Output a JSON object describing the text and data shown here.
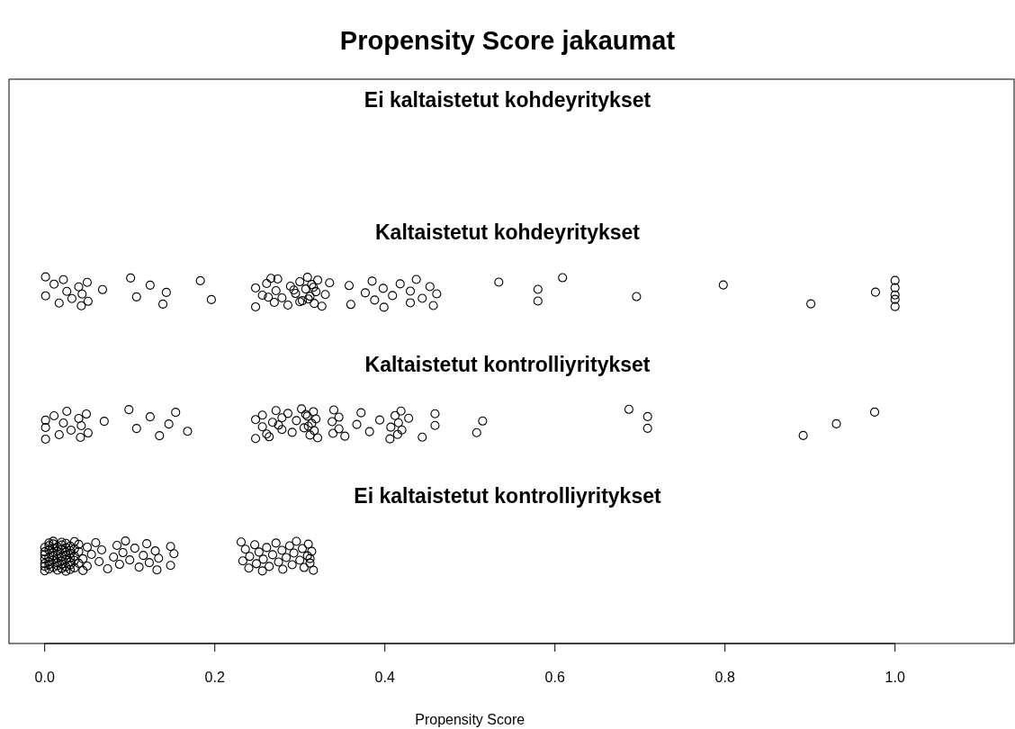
{
  "chart_data": {
    "type": "scatter",
    "title": "Propensity Score jakaumat",
    "xlabel": "Propensity Score",
    "orientation": "horizontal",
    "categories": [
      "Ei kaltaistetut kohdeyritykset",
      "Kaltaistetut kohdeyritykset",
      "Kaltaistetut kontrolliyritykset",
      "Ei kaltaistetut kontrolliyritykset"
    ],
    "xlim": [
      -0.042,
      1.14
    ],
    "xticks": [
      {
        "value": 0,
        "label": "0.0"
      },
      {
        "value": 0.2,
        "label": "0.2"
      },
      {
        "value": 0.4,
        "label": "0.4"
      },
      {
        "value": 0.6,
        "label": "0.6"
      },
      {
        "value": 0.8,
        "label": "0.8"
      },
      {
        "value": 1,
        "label": "1.0"
      }
    ],
    "grid": false,
    "legend": false,
    "marker": "circle",
    "series": [
      {
        "color": "#000000",
        "x": [
          "Kaltaistetut kohdeyritykset",
          "Kaltaistetut kohdeyritykset",
          "Kaltaistetut kohdeyritykset",
          "Kaltaistetut kohdeyritykset",
          "Kaltaistetut kohdeyritykset",
          "Kaltaistetut kohdeyritykset",
          "Kaltaistetut kohdeyritykset",
          "Kaltaistetut kohdeyritykset",
          "Kaltaistetut kohdeyritykset",
          "Kaltaistetut kohdeyritykset",
          "Kaltaistetut kohdeyritykset",
          "Kaltaistetut kohdeyritykset",
          "Kaltaistetut kohdeyritykset",
          "Kaltaistetut kohdeyritykset",
          "Kaltaistetut kohdeyritykset",
          "Kaltaistetut kohdeyritykset",
          "Kaltaistetut kohdeyritykset",
          "Kaltaistetut kohdeyritykset",
          "Kaltaistetut kohdeyritykset",
          "Kaltaistetut kohdeyritykset",
          "Kaltaistetut kohdeyritykset",
          "Kaltaistetut kohdeyritykset",
          "Kaltaistetut kohdeyritykset",
          "Kaltaistetut kohdeyritykset",
          "Kaltaistetut kohdeyritykset",
          "Kaltaistetut kohdeyritykset",
          "Kaltaistetut kohdeyritykset",
          "Kaltaistetut kohdeyritykset",
          "Kaltaistetut kohdeyritykset",
          "Kaltaistetut kohdeyritykset",
          "Kaltaistetut kohdeyritykset",
          "Kaltaistetut kohdeyritykset",
          "Kaltaistetut kohdeyritykset",
          "Kaltaistetut kohdeyritykset",
          "Kaltaistetut kohdeyritykset",
          "Kaltaistetut kohdeyritykset",
          "Kaltaistetut kohdeyritykset",
          "Kaltaistetut kohdeyritykset",
          "Kaltaistetut kohdeyritykset",
          "Kaltaistetut kohdeyritykset",
          "Kaltaistetut kohdeyritykset",
          "Kaltaistetut kohdeyritykset",
          "Kaltaistetut kohdeyritykset",
          "Kaltaistetut kohdeyritykset",
          "Kaltaistetut kohdeyritykset",
          "Kaltaistetut kohdeyritykset",
          "Kaltaistetut kohdeyritykset",
          "Kaltaistetut kohdeyritykset",
          "Kaltaistetut kohdeyritykset",
          "Kaltaistetut kohdeyritykset",
          "Kaltaistetut kohdeyritykset",
          "Kaltaistetut kohdeyritykset",
          "Kaltaistetut kohdeyritykset",
          "Kaltaistetut kohdeyritykset",
          "Kaltaistetut kohdeyritykset",
          "Kaltaistetut kohdeyritykset",
          "Kaltaistetut kohdeyritykset",
          "Kaltaistetut kohdeyritykset",
          "Kaltaistetut kohdeyritykset",
          "Kaltaistetut kohdeyritykset",
          "Kaltaistetut kohdeyritykset",
          "Kaltaistetut kohdeyritykset",
          "Kaltaistetut kohdeyritykset",
          "Kaltaistetut kohdeyritykset",
          "Kaltaistetut kohdeyritykset",
          "Kaltaistetut kohdeyritykset",
          "Kaltaistetut kohdeyritykset",
          "Kaltaistetut kohdeyritykset",
          "Kaltaistetut kohdeyritykset",
          "Kaltaistetut kohdeyritykset",
          "Kaltaistetut kohdeyritykset",
          "Kaltaistetut kohdeyritykset",
          "Kaltaistetut kohdeyritykset",
          "Kaltaistetut kohdeyritykset",
          "Kaltaistetut kohdeyritykset",
          "Kaltaistetut kohdeyritykset",
          "Kaltaistetut kohdeyritykset",
          "Kaltaistetut kohdeyritykset"
        ],
        "values": [
          0.001,
          0.001,
          0.011,
          0.017,
          0.026,
          0.022,
          0.032,
          0.04,
          0.043,
          0.044,
          0.05,
          0.051,
          0.068,
          0.101,
          0.108,
          0.124,
          0.139,
          0.143,
          0.183,
          0.196,
          0.248,
          0.248,
          0.256,
          0.261,
          0.27,
          0.272,
          0.274,
          0.279,
          0.289,
          0.286,
          0.295,
          0.3,
          0.303,
          0.307,
          0.309,
          0.312,
          0.314,
          0.317,
          0.319,
          0.321,
          0.31,
          0.316,
          0.326,
          0.33,
          0.335,
          0.3,
          0.293,
          0.266,
          0.263,
          0.358,
          0.36,
          0.377,
          0.385,
          0.388,
          0.398,
          0.399,
          0.409,
          0.418,
          0.43,
          0.43,
          0.437,
          0.444,
          0.453,
          0.457,
          0.461,
          0.534,
          0.58,
          0.58,
          0.609,
          0.696,
          0.798,
          0.901,
          0.977,
          1.0,
          1.0,
          1.0,
          1.0,
          1.0
        ]
      },
      {
        "color": "#000000",
        "x": [
          "Kaltaistetut kontrolliyritykset",
          "Kaltaistetut kontrolliyritykset",
          "Kaltaistetut kontrolliyritykset",
          "Kaltaistetut kontrolliyritykset",
          "Kaltaistetut kontrolliyritykset",
          "Kaltaistetut kontrolliyritykset",
          "Kaltaistetut kontrolliyritykset",
          "Kaltaistetut kontrolliyritykset",
          "Kaltaistetut kontrolliyritykset",
          "Kaltaistetut kontrolliyritykset",
          "Kaltaistetut kontrolliyritykset",
          "Kaltaistetut kontrolliyritykset",
          "Kaltaistetut kontrolliyritykset",
          "Kaltaistetut kontrolliyritykset",
          "Kaltaistetut kontrolliyritykset",
          "Kaltaistetut kontrolliyritykset",
          "Kaltaistetut kontrolliyritykset",
          "Kaltaistetut kontrolliyritykset",
          "Kaltaistetut kontrolliyritykset",
          "Kaltaistetut kontrolliyritykset",
          "Kaltaistetut kontrolliyritykset",
          "Kaltaistetut kontrolliyritykset",
          "Kaltaistetut kontrolliyritykset",
          "Kaltaistetut kontrolliyritykset",
          "Kaltaistetut kontrolliyritykset",
          "Kaltaistetut kontrolliyritykset",
          "Kaltaistetut kontrolliyritykset",
          "Kaltaistetut kontrolliyritykset",
          "Kaltaistetut kontrolliyritykset",
          "Kaltaistetut kontrolliyritykset",
          "Kaltaistetut kontrolliyritykset",
          "Kaltaistetut kontrolliyritykset",
          "Kaltaistetut kontrolliyritykset",
          "Kaltaistetut kontrolliyritykset",
          "Kaltaistetut kontrolliyritykset",
          "Kaltaistetut kontrolliyritykset",
          "Kaltaistetut kontrolliyritykset",
          "Kaltaistetut kontrolliyritykset",
          "Kaltaistetut kontrolliyritykset",
          "Kaltaistetut kontrolliyritykset",
          "Kaltaistetut kontrolliyritykset",
          "Kaltaistetut kontrolliyritykset",
          "Kaltaistetut kontrolliyritykset",
          "Kaltaistetut kontrolliyritykset",
          "Kaltaistetut kontrolliyritykset",
          "Kaltaistetut kontrolliyritykset",
          "Kaltaistetut kontrolliyritykset",
          "Kaltaistetut kontrolliyritykset",
          "Kaltaistetut kontrolliyritykset",
          "Kaltaistetut kontrolliyritykset",
          "Kaltaistetut kontrolliyritykset",
          "Kaltaistetut kontrolliyritykset",
          "Kaltaistetut kontrolliyritykset",
          "Kaltaistetut kontrolliyritykset",
          "Kaltaistetut kontrolliyritykset",
          "Kaltaistetut kontrolliyritykset",
          "Kaltaistetut kontrolliyritykset",
          "Kaltaistetut kontrolliyritykset",
          "Kaltaistetut kontrolliyritykset",
          "Kaltaistetut kontrolliyritykset",
          "Kaltaistetut kontrolliyritykset",
          "Kaltaistetut kontrolliyritykset",
          "Kaltaistetut kontrolliyritykset",
          "Kaltaistetut kontrolliyritykset",
          "Kaltaistetut kontrolliyritykset",
          "Kaltaistetut kontrolliyritykset",
          "Kaltaistetut kontrolliyritykset",
          "Kaltaistetut kontrolliyritykset",
          "Kaltaistetut kontrolliyritykset",
          "Kaltaistetut kontrolliyritykset",
          "Kaltaistetut kontrolliyritykset",
          "Kaltaistetut kontrolliyritykset",
          "Kaltaistetut kontrolliyritykset",
          "Kaltaistetut kontrolliyritykset",
          "Kaltaistetut kontrolliyritykset"
        ],
        "values": [
          0.001,
          0.001,
          0.001,
          0.011,
          0.017,
          0.022,
          0.026,
          0.031,
          0.04,
          0.042,
          0.043,
          0.049,
          0.051,
          0.07,
          0.099,
          0.108,
          0.124,
          0.135,
          0.146,
          0.154,
          0.168,
          0.248,
          0.248,
          0.256,
          0.256,
          0.261,
          0.268,
          0.272,
          0.279,
          0.279,
          0.264,
          0.275,
          0.286,
          0.291,
          0.296,
          0.302,
          0.305,
          0.309,
          0.312,
          0.314,
          0.316,
          0.317,
          0.319,
          0.321,
          0.31,
          0.307,
          0.339,
          0.338,
          0.34,
          0.346,
          0.346,
          0.353,
          0.367,
          0.372,
          0.382,
          0.394,
          0.406,
          0.407,
          0.412,
          0.415,
          0.416,
          0.419,
          0.42,
          0.428,
          0.444,
          0.459,
          0.459,
          0.508,
          0.515,
          0.687,
          0.709,
          0.709,
          0.892,
          0.931,
          0.976
        ]
      },
      {
        "color": "#000000",
        "x": [
          "Ei kaltaistetut kontrolliyritykset",
          "Ei kaltaistetut kontrolliyritykset",
          "Ei kaltaistetut kontrolliyritykset",
          "Ei kaltaistetut kontrolliyritykset",
          "Ei kaltaistetut kontrolliyritykset",
          "Ei kaltaistetut kontrolliyritykset",
          "Ei kaltaistetut kontrolliyritykset",
          "Ei kaltaistetut kontrolliyritykset",
          "Ei kaltaistetut kontrolliyritykset",
          "Ei kaltaistetut kontrolliyritykset",
          "Ei kaltaistetut kontrolliyritykset",
          "Ei kaltaistetut kontrolliyritykset",
          "Ei kaltaistetut kontrolliyritykset",
          "Ei kaltaistetut kontrolliyritykset",
          "Ei kaltaistetut kontrolliyritykset",
          "Ei kaltaistetut kontrolliyritykset",
          "Ei kaltaistetut kontrolliyritykset",
          "Ei kaltaistetut kontrolliyritykset",
          "Ei kaltaistetut kontrolliyritykset",
          "Ei kaltaistetut kontrolliyritykset",
          "Ei kaltaistetut kontrolliyritykset",
          "Ei kaltaistetut kontrolliyritykset",
          "Ei kaltaistetut kontrolliyritykset",
          "Ei kaltaistetut kontrolliyritykset",
          "Ei kaltaistetut kontrolliyritykset",
          "Ei kaltaistetut kontrolliyritykset",
          "Ei kaltaistetut kontrolliyritykset",
          "Ei kaltaistetut kontrolliyritykset",
          "Ei kaltaistetut kontrolliyritykset",
          "Ei kaltaistetut kontrolliyritykset",
          "Ei kaltaistetut kontrolliyritykset",
          "Ei kaltaistetut kontrolliyritykset",
          "Ei kaltaistetut kontrolliyritykset",
          "Ei kaltaistetut kontrolliyritykset",
          "Ei kaltaistetut kontrolliyritykset",
          "Ei kaltaistetut kontrolliyritykset",
          "Ei kaltaistetut kontrolliyritykset",
          "Ei kaltaistetut kontrolliyritykset",
          "Ei kaltaistetut kontrolliyritykset",
          "Ei kaltaistetut kontrolliyritykset",
          "Ei kaltaistetut kontrolliyritykset",
          "Ei kaltaistetut kontrolliyritykset",
          "Ei kaltaistetut kontrolliyritykset",
          "Ei kaltaistetut kontrolliyritykset",
          "Ei kaltaistetut kontrolliyritykset",
          "Ei kaltaistetut kontrolliyritykset",
          "Ei kaltaistetut kontrolliyritykset",
          "Ei kaltaistetut kontrolliyritykset",
          "Ei kaltaistetut kontrolliyritykset",
          "Ei kaltaistetut kontrolliyritykset",
          "Ei kaltaistetut kontrolliyritykset",
          "Ei kaltaistetut kontrolliyritykset",
          "Ei kaltaistetut kontrolliyritykset",
          "Ei kaltaistetut kontrolliyritykset",
          "Ei kaltaistetut kontrolliyritykset",
          "Ei kaltaistetut kontrolliyritykset",
          "Ei kaltaistetut kontrolliyritykset",
          "Ei kaltaistetut kontrolliyritykset",
          "Ei kaltaistetut kontrolliyritykset",
          "Ei kaltaistetut kontrolliyritykset",
          "Ei kaltaistetut kontrolliyritykset",
          "Ei kaltaistetut kontrolliyritykset",
          "Ei kaltaistetut kontrolliyritykset",
          "Ei kaltaistetut kontrolliyritykset",
          "Ei kaltaistetut kontrolliyritykset",
          "Ei kaltaistetut kontrolliyritykset",
          "Ei kaltaistetut kontrolliyritykset",
          "Ei kaltaistetut kontrolliyritykset",
          "Ei kaltaistetut kontrolliyritykset",
          "Ei kaltaistetut kontrolliyritykset",
          "Ei kaltaistetut kontrolliyritykset",
          "Ei kaltaistetut kontrolliyritykset",
          "Ei kaltaistetut kontrolliyritykset",
          "Ei kaltaistetut kontrolliyritykset",
          "Ei kaltaistetut kontrolliyritykset",
          "Ei kaltaistetut kontrolliyritykset",
          "Ei kaltaistetut kontrolliyritykset",
          "Ei kaltaistetut kontrolliyritykset",
          "Ei kaltaistetut kontrolliyritykset",
          "Ei kaltaistetut kontrolliyritykset",
          "Ei kaltaistetut kontrolliyritykset",
          "Ei kaltaistetut kontrolliyritykset",
          "Ei kaltaistetut kontrolliyritykset",
          "Ei kaltaistetut kontrolliyritykset",
          "Ei kaltaistetut kontrolliyritykset",
          "Ei kaltaistetut kontrolliyritykset",
          "Ei kaltaistetut kontrolliyritykset",
          "Ei kaltaistetut kontrolliyritykset",
          "Ei kaltaistetut kontrolliyritykset",
          "Ei kaltaistetut kontrolliyritykset",
          "Ei kaltaistetut kontrolliyritykset",
          "Ei kaltaistetut kontrolliyritykset",
          "Ei kaltaistetut kontrolliyritykset",
          "Ei kaltaistetut kontrolliyritykset",
          "Ei kaltaistetut kontrolliyritykset",
          "Ei kaltaistetut kontrolliyritykset",
          "Ei kaltaistetut kontrolliyritykset",
          "Ei kaltaistetut kontrolliyritykset",
          "Ei kaltaistetut kontrolliyritykset",
          "Ei kaltaistetut kontrolliyritykset",
          "Ei kaltaistetut kontrolliyritykset",
          "Ei kaltaistetut kontrolliyritykset",
          "Ei kaltaistetut kontrolliyritykset",
          "Ei kaltaistetut kontrolliyritykset",
          "Ei kaltaistetut kontrolliyritykset",
          "Ei kaltaistetut kontrolliyritykset",
          "Ei kaltaistetut kontrolliyritykset",
          "Ei kaltaistetut kontrolliyritykset",
          "Ei kaltaistetut kontrolliyritykset",
          "Ei kaltaistetut kontrolliyritykset",
          "Ei kaltaistetut kontrolliyritykset",
          "Ei kaltaistetut kontrolliyritykset",
          "Ei kaltaistetut kontrolliyritykset",
          "Ei kaltaistetut kontrolliyritykset"
        ],
        "values": [
          0.0,
          0.0,
          0.0,
          0.0,
          0.0,
          0.0,
          0.0,
          0.005,
          0.005,
          0.005,
          0.005,
          0.005,
          0.005,
          0.005,
          0.01,
          0.01,
          0.01,
          0.01,
          0.01,
          0.01,
          0.01,
          0.015,
          0.015,
          0.015,
          0.015,
          0.015,
          0.015,
          0.015,
          0.02,
          0.02,
          0.02,
          0.02,
          0.02,
          0.02,
          0.02,
          0.025,
          0.025,
          0.025,
          0.025,
          0.025,
          0.025,
          0.025,
          0.03,
          0.03,
          0.03,
          0.03,
          0.03,
          0.03,
          0.03,
          0.035,
          0.035,
          0.035,
          0.035,
          0.035,
          0.04,
          0.04,
          0.04,
          0.045,
          0.045,
          0.05,
          0.05,
          0.055,
          0.06,
          0.064,
          0.067,
          0.074,
          0.081,
          0.085,
          0.088,
          0.092,
          0.095,
          0.1,
          0.106,
          0.111,
          0.116,
          0.12,
          0.123,
          0.13,
          0.132,
          0.134,
          0.148,
          0.148,
          0.152,
          0.231,
          0.233,
          0.236,
          0.24,
          0.241,
          0.247,
          0.249,
          0.252,
          0.256,
          0.257,
          0.261,
          0.264,
          0.268,
          0.272,
          0.275,
          0.279,
          0.28,
          0.284,
          0.288,
          0.291,
          0.293,
          0.296,
          0.3,
          0.303,
          0.305,
          0.309,
          0.31,
          0.312,
          0.314,
          0.316,
          0.312
        ]
      }
    ]
  }
}
